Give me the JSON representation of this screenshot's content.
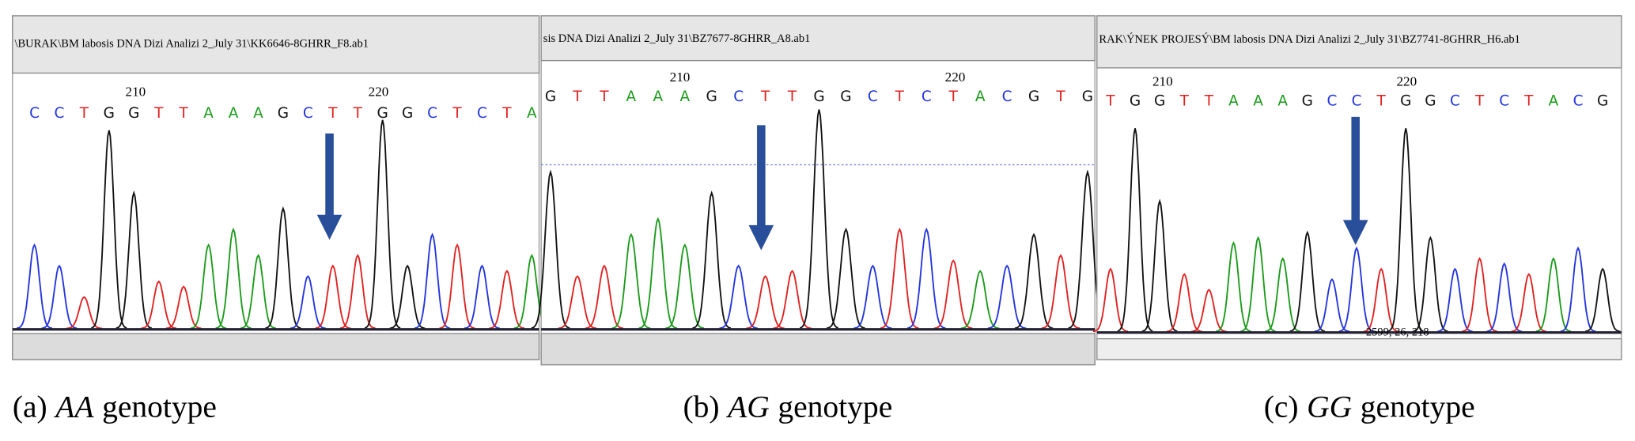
{
  "panels": [
    {
      "file_path": "\\BURAK\\BM labosis DNA Dizi Analizi 2_July 31\\KK6646-8GHRR_F8.ab1",
      "ruler": [
        "210",
        "220"
      ],
      "bases": [
        "C",
        "C",
        "T",
        "G",
        "G",
        "T",
        "T",
        "A",
        "A",
        "A",
        "G",
        "C",
        "T",
        "T",
        "G",
        "G",
        "C",
        "T",
        "C",
        "T",
        "A"
      ],
      "caption": {
        "label": "(a)",
        "genotype": "AA",
        "suffix": "genotype"
      }
    },
    {
      "file_path": "sis DNA Dizi Analizi 2_July 31\\BZ7677-8GHRR_A8.ab1",
      "ruler": [
        "210",
        "220"
      ],
      "bases": [
        "G",
        "T",
        "T",
        "A",
        "A",
        "A",
        "G",
        "C",
        "T",
        "T",
        "G",
        "G",
        "C",
        "T",
        "C",
        "T",
        "A",
        "C",
        "G",
        "T",
        "G"
      ],
      "caption": {
        "label": "(b)",
        "genotype": "AG",
        "suffix": "genotype"
      }
    },
    {
      "file_path": "RAK\\ÝNEK PROJESÝ\\BM labosis DNA Dizi Analizi 2_July 31\\BZ7741-8GHRR_H6.ab1",
      "ruler": [
        "210",
        "220"
      ],
      "bases": [
        "T",
        "G",
        "G",
        "T",
        "T",
        "A",
        "A",
        "A",
        "G",
        "C",
        "C",
        "T",
        "G",
        "G",
        "C",
        "T",
        "C",
        "T",
        "A",
        "C",
        "G"
      ],
      "cursor_readout": "2599, 26, 218",
      "caption": {
        "label": "(c)",
        "genotype": "GG",
        "suffix": "genotype"
      }
    }
  ]
}
